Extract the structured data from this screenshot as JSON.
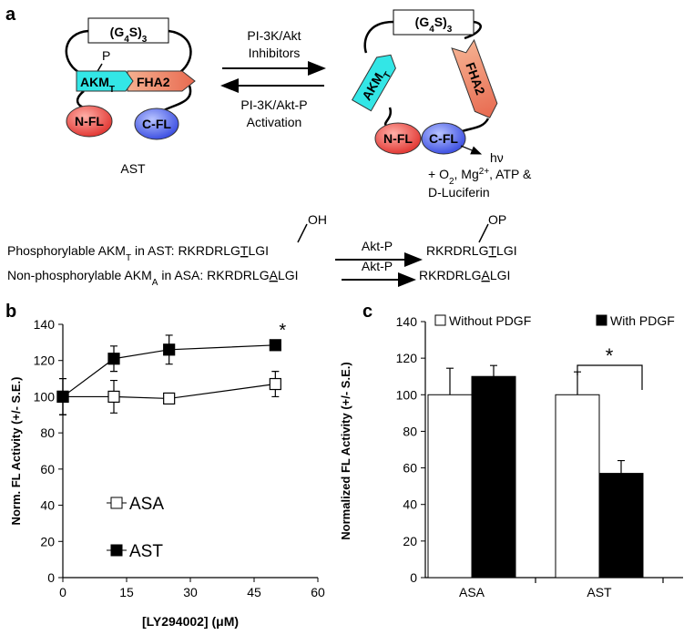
{
  "panel_labels": [
    "a",
    "b",
    "c"
  ],
  "diagram": {
    "g4s_left": [
      "(G",
      "4",
      "S)",
      "3"
    ],
    "phospho_p": "P",
    "akm_left": [
      "AKM",
      "T"
    ],
    "fha2_left": "FHA2",
    "nfl_left": "N-FL",
    "cfl_left": "C-FL",
    "construct_name": "AST",
    "forward_arrow_label": [
      "PI-3K/Akt",
      "Inhibitors"
    ],
    "reverse_arrow_label": [
      "PI-3K/Akt-P",
      "Activation"
    ],
    "g4s_right": [
      "(G",
      "4",
      "S)",
      "3"
    ],
    "akm_right": [
      "AKM",
      "T"
    ],
    "fha2_right": "FHA2",
    "nfl_right": "N-FL",
    "cfl_right": "C-FL",
    "light": "hν",
    "substrates_line1": [
      "+ O",
      "2",
      ", Mg",
      "2+",
      ", ATP &"
    ],
    "substrates_line2": "D-Luciferin"
  },
  "reactions": [
    {
      "label": [
        "Phosphorylable AKM",
        "T",
        " in AST: "
      ],
      "substrate": [
        "RKRDRLG",
        "T",
        "LGI"
      ],
      "group": "OH",
      "enzyme": "Akt-P",
      "product": [
        "RKRDRLG",
        "T",
        "LGI"
      ],
      "product_group": "OP"
    },
    {
      "label": [
        "Non-phosphorylable AKM",
        "A",
        " in ASA: "
      ],
      "substrate": [
        "RKRDRLG",
        "A",
        "LGI"
      ],
      "enzyme": "Akt-P",
      "product": [
        "RKRDRLG",
        "A",
        "LGI"
      ]
    }
  ],
  "chart_data": [
    {
      "type": "line",
      "xlabel": "[LY294002] (μM)",
      "ylabel": "Norm. FL Activity (+/- S.E.)",
      "x": [
        0,
        12,
        25,
        50
      ],
      "series": [
        {
          "name": "ASA",
          "color": "#ffffff",
          "values": [
            100,
            100,
            99,
            107
          ],
          "errors": [
            10,
            9,
            1.5,
            7
          ]
        },
        {
          "name": "AST",
          "color": "#000000",
          "values": [
            100,
            121,
            126,
            128.5
          ],
          "errors": [
            10,
            7,
            8,
            1.5
          ]
        }
      ],
      "xlim": [
        0,
        60
      ],
      "xticks": [
        0,
        15,
        30,
        45,
        60
      ],
      "ylim": [
        0,
        140
      ],
      "yticks": [
        0,
        20,
        40,
        60,
        80,
        100,
        120,
        140
      ],
      "annotation": "*"
    },
    {
      "type": "bar",
      "ylabel": "Normalized FL Activity (+/- S.E.)",
      "categories": [
        "ASA",
        "AST"
      ],
      "series": [
        {
          "name": "Without PDGF",
          "color": "#ffffff",
          "values": [
            100,
            100
          ],
          "errors": [
            14.5,
            12.5
          ]
        },
        {
          "name": "With PDGF",
          "color": "#000000",
          "values": [
            110,
            57
          ],
          "errors": [
            6,
            7
          ]
        }
      ],
      "ylim": [
        0,
        140
      ],
      "yticks": [
        0,
        20,
        40,
        60,
        80,
        100,
        120,
        140
      ],
      "annotation": "*"
    }
  ]
}
